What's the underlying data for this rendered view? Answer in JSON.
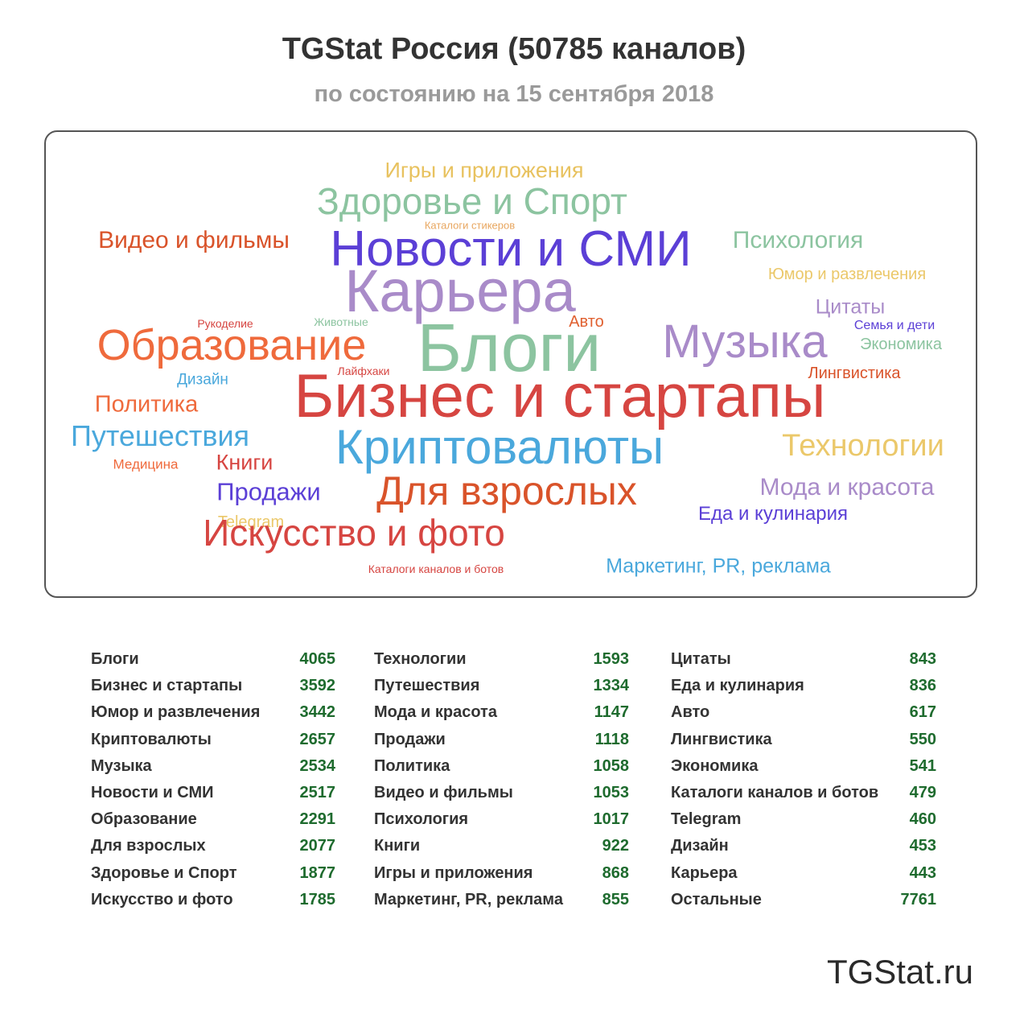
{
  "header": {
    "title": "TGStat Россия (50785 каналов)",
    "subtitle": "по состоянию на 15 сентября 2018"
  },
  "cloud": [
    {
      "text": "Игры и приложения",
      "color": "#e8c25f"
    },
    {
      "text": "Здоровье и Спорт",
      "color": "#8cc4a0"
    },
    {
      "text": "Каталоги стикеров",
      "color": "#e8a65f"
    },
    {
      "text": "Видео и фильмы",
      "color": "#d9532a"
    },
    {
      "text": "Новости и СМИ",
      "color": "#5b3fd6"
    },
    {
      "text": "Психология",
      "color": "#8cc4a0"
    },
    {
      "text": "Юмор и развлечения",
      "color": "#ebc86a"
    },
    {
      "text": "Карьера",
      "color": "#a98bc9"
    },
    {
      "text": "Цитаты",
      "color": "#a98bc9"
    },
    {
      "text": "Рукоделие",
      "color": "#d64541"
    },
    {
      "text": "Животные",
      "color": "#8cc4a0"
    },
    {
      "text": "Авто",
      "color": "#e06030"
    },
    {
      "text": "Семья и дети",
      "color": "#5b3fd6"
    },
    {
      "text": "Образование",
      "color": "#ef6a3c"
    },
    {
      "text": "Блоги",
      "color": "#8cc4a0"
    },
    {
      "text": "Музыка",
      "color": "#a98bc9"
    },
    {
      "text": "Экономика",
      "color": "#8cc4a0"
    },
    {
      "text": "Дизайн",
      "color": "#4aa8dc"
    },
    {
      "text": "Лайфхаки",
      "color": "#d64541"
    },
    {
      "text": "Лингвистика",
      "color": "#d9532a"
    },
    {
      "text": "Политика",
      "color": "#ef6a3c"
    },
    {
      "text": "Бизнес и стартапы",
      "color": "#d64541"
    },
    {
      "text": "Путешествия",
      "color": "#4aa8dc"
    },
    {
      "text": "Криптовалюты",
      "color": "#4aa8dc"
    },
    {
      "text": "Технологии",
      "color": "#ebc86a"
    },
    {
      "text": "Медицина",
      "color": "#ef6a3c"
    },
    {
      "text": "Книги",
      "color": "#d64541"
    },
    {
      "text": "Для взрослых",
      "color": "#d9532a"
    },
    {
      "text": "Продажи",
      "color": "#5b3fd6"
    },
    {
      "text": "Мода и красота",
      "color": "#a98bc9"
    },
    {
      "text": "Еда и кулинария",
      "color": "#5b3fd6"
    },
    {
      "text": "Telegram",
      "color": "#ebc86a"
    },
    {
      "text": "Искусство и фото",
      "color": "#d64541"
    },
    {
      "text": "Каталоги каналов и ботов",
      "color": "#d64541"
    },
    {
      "text": "Маркетинг, PR, реклама",
      "color": "#4aa8dc"
    }
  ],
  "chart_data": {
    "type": "table",
    "title": "TGStat Россия (50785 каналов)",
    "subtitle": "по состоянию на 15 сентября 2018",
    "rows": [
      {
        "category": "Блоги",
        "value": 4065
      },
      {
        "category": "Бизнес и стартапы",
        "value": 3592
      },
      {
        "category": "Юмор и развлечения",
        "value": 3442
      },
      {
        "category": "Криптовалюты",
        "value": 2657
      },
      {
        "category": "Музыка",
        "value": 2534
      },
      {
        "category": "Новости и СМИ",
        "value": 2517
      },
      {
        "category": "Образование",
        "value": 2291
      },
      {
        "category": "Для взрослых",
        "value": 2077
      },
      {
        "category": "Здоровье и Спорт",
        "value": 1877
      },
      {
        "category": "Искусство и фото",
        "value": 1785
      },
      {
        "category": "Технологии",
        "value": 1593
      },
      {
        "category": "Путешествия",
        "value": 1334
      },
      {
        "category": "Мода и красота",
        "value": 1147
      },
      {
        "category": "Продажи",
        "value": 1118
      },
      {
        "category": "Политика",
        "value": 1058
      },
      {
        "category": "Видео и фильмы",
        "value": 1053
      },
      {
        "category": "Психология",
        "value": 1017
      },
      {
        "category": "Книги",
        "value": 922
      },
      {
        "category": "Игры и приложения",
        "value": 868
      },
      {
        "category": "Маркетинг, PR, реклама",
        "value": 855
      },
      {
        "category": "Цитаты",
        "value": 843
      },
      {
        "category": "Еда и кулинария",
        "value": 836
      },
      {
        "category": "Авто",
        "value": 617
      },
      {
        "category": "Лингвистика",
        "value": 550
      },
      {
        "category": "Экономика",
        "value": 541
      },
      {
        "category": "Каталоги каналов и ботов",
        "value": 479
      },
      {
        "category": "Telegram",
        "value": 460
      },
      {
        "category": "Дизайн",
        "value": 453
      },
      {
        "category": "Карьера",
        "value": 443
      },
      {
        "category": "Остальные",
        "value": 7761
      }
    ]
  },
  "footer": {
    "brand": "TGStat.ru"
  }
}
